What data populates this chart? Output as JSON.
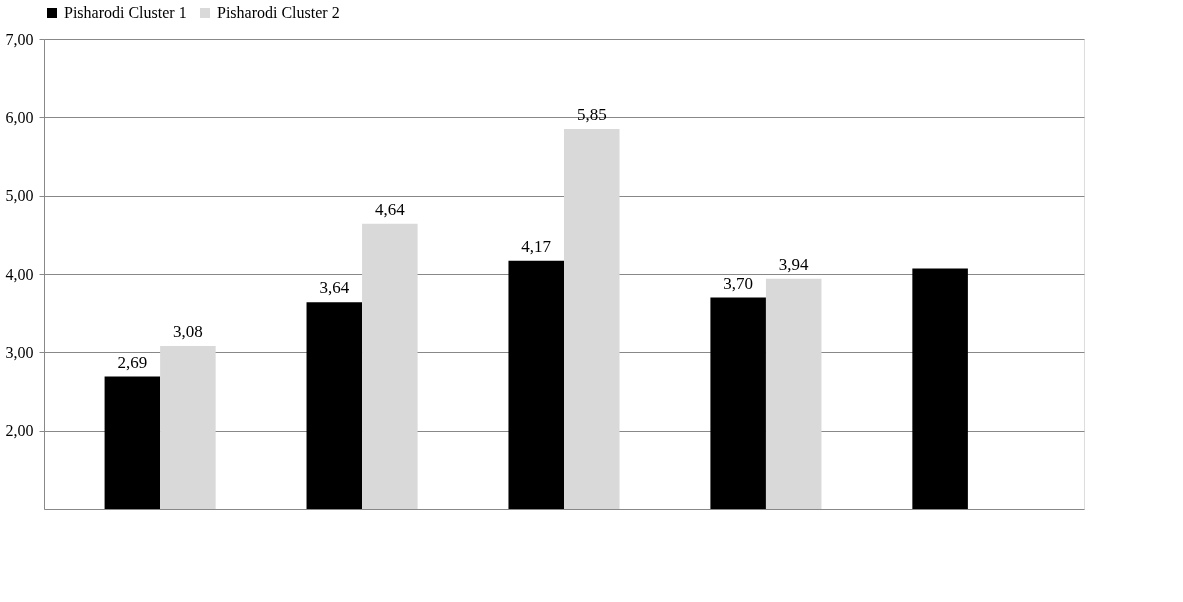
{
  "chart_data": {
    "type": "bar",
    "categories": [
      null,
      null,
      null,
      null,
      null
    ],
    "series": [
      {
        "name": "Pisharodi Cluster 1",
        "color": "#000000",
        "values": [
          2.69,
          3.64,
          4.17,
          3.7,
          4.07
        ],
        "value_labels": [
          "2,69",
          "3,64",
          "4,17",
          "3,70",
          null
        ]
      },
      {
        "name": "Pisharodi Cluster 2",
        "color": "#d9d9d9",
        "values": [
          3.08,
          4.64,
          5.85,
          3.94,
          null
        ],
        "value_labels": [
          "3,08",
          "4,64",
          "5,85",
          "3,94",
          null
        ]
      }
    ],
    "ylim": [
      1,
      7
    ],
    "yticks": [
      {
        "value": 2,
        "label": "2,00"
      },
      {
        "value": 3,
        "label": "3,00"
      },
      {
        "value": 4,
        "label": "4,00"
      },
      {
        "value": 5,
        "label": "5,00"
      },
      {
        "value": 6,
        "label": "6,00"
      },
      {
        "value": 7,
        "label": "7,00"
      }
    ],
    "grid": "y",
    "legend": "top"
  }
}
